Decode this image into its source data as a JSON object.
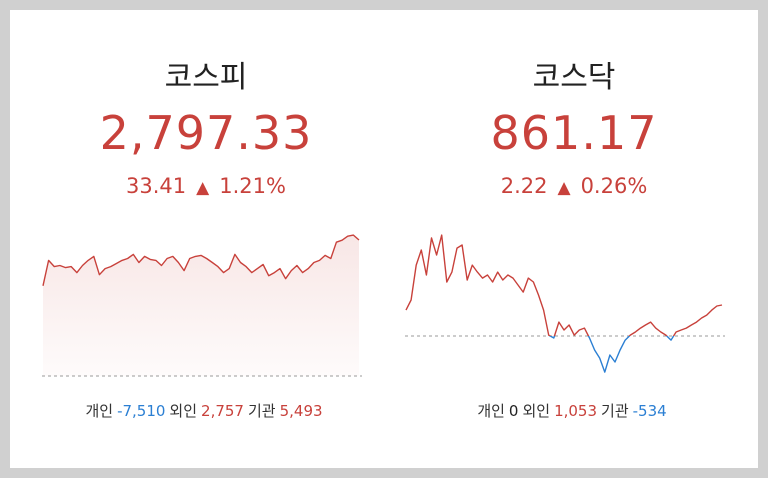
{
  "cards": [
    {
      "title": "코스피",
      "price": "2,797.33",
      "change": "33.41",
      "rate": "1.21%",
      "investors": [
        {
          "label": "개인",
          "value": "-7,510"
        },
        {
          "label": "외인",
          "value": "2,757"
        },
        {
          "label": "기관",
          "value": "5,493"
        }
      ],
      "chart": {
        "type": "line",
        "ylim": [
          2763.92,
          2799.3
        ],
        "reference": 2763.92,
        "area": true,
        "up_color": "#c8413b",
        "down_color": "#2b7fd3",
        "values": [
          2786.08,
          2792.31,
          2790.81,
          2791.06,
          2790.56,
          2790.81,
          2789.32,
          2791.06,
          2792.31,
          2793.3,
          2788.82,
          2790.31,
          2790.81,
          2791.56,
          2792.31,
          2792.8,
          2793.8,
          2791.81,
          2793.3,
          2792.56,
          2792.31,
          2791.06,
          2792.8,
          2793.3,
          2791.81,
          2789.82,
          2792.8,
          2793.3,
          2793.55,
          2792.8,
          2791.81,
          2790.81,
          2789.32,
          2790.31,
          2793.8,
          2791.81,
          2790.81,
          2789.32,
          2790.31,
          2791.31,
          2788.57,
          2789.32,
          2790.31,
          2787.82,
          2789.82,
          2791.06,
          2789.32,
          2790.31,
          2791.81,
          2792.31,
          2793.55,
          2792.8,
          2796.79,
          2797.29,
          2798.28,
          2798.53,
          2797.33
        ]
      }
    },
    {
      "title": "코스닥",
      "price": "861.17",
      "change": "2.22",
      "rate": "0.26%",
      "investors": [
        {
          "label": "개인",
          "value": "0"
        },
        {
          "label": "외인",
          "value": "1,053"
        },
        {
          "label": "기관",
          "value": "-534"
        }
      ],
      "chart": {
        "type": "line",
        "ylim": [
          856.09,
          866.4
        ],
        "reference": 858.95,
        "area": false,
        "up_color": "#c8413b",
        "down_color": "#2b7fd3",
        "values": [
          860.81,
          861.53,
          864.03,
          865.11,
          863.32,
          865.97,
          864.75,
          866.18,
          862.82,
          863.53,
          865.25,
          865.47,
          862.96,
          864.03,
          863.53,
          863.1,
          863.32,
          862.82,
          863.53,
          862.96,
          863.32,
          863.1,
          862.6,
          862.1,
          863.1,
          862.82,
          861.89,
          860.81,
          859.02,
          858.81,
          859.95,
          859.38,
          859.74,
          859.02,
          859.38,
          859.52,
          858.81,
          857.95,
          857.37,
          856.37,
          857.59,
          857.09,
          857.95,
          858.66,
          859.02,
          859.24,
          859.52,
          859.74,
          859.95,
          859.52,
          859.24,
          859.02,
          858.66,
          859.24,
          859.38,
          859.52,
          859.74,
          859.95,
          860.24,
          860.45,
          860.81,
          861.1,
          861.17
        ]
      }
    }
  ]
}
